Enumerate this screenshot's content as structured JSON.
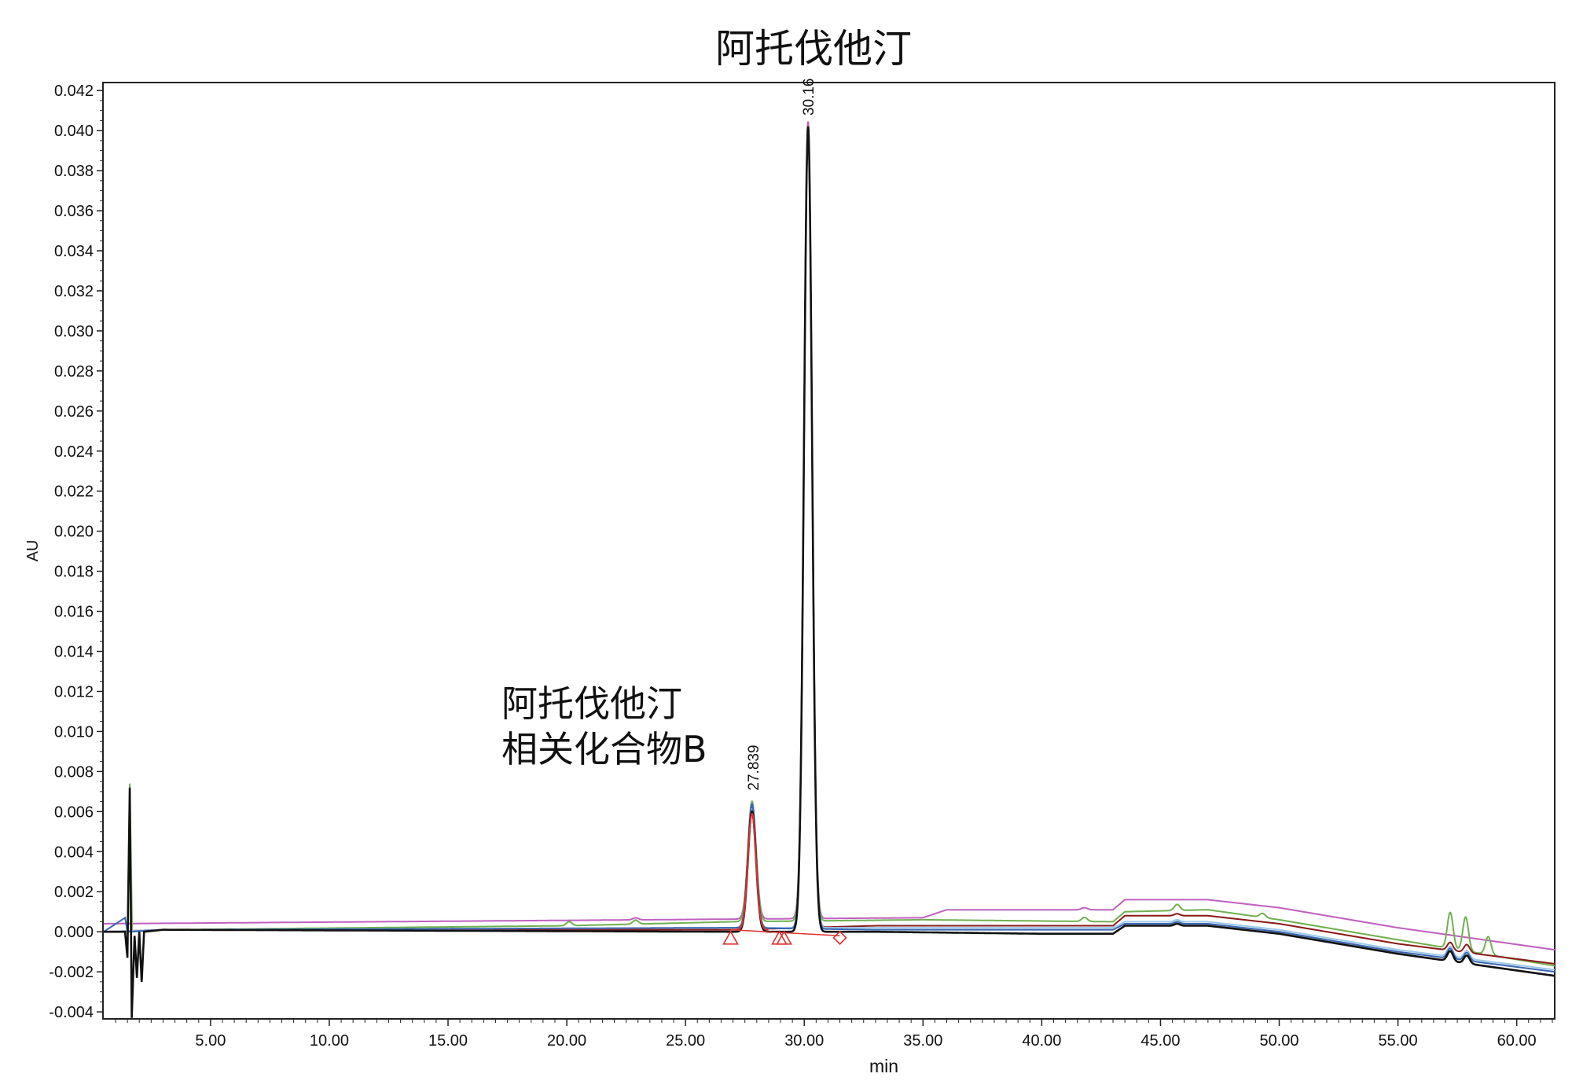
{
  "chart_data": {
    "type": "line",
    "title": "阿托伐他汀",
    "xlabel": "min",
    "ylabel": "AU",
    "xlim": [
      0.47,
      61.6
    ],
    "ylim": [
      -0.00435,
      0.0424
    ],
    "xticks": [
      5,
      10,
      15,
      20,
      25,
      30,
      35,
      40,
      45,
      50,
      55,
      60
    ],
    "xtick_labels": [
      "5.00",
      "10.00",
      "15.00",
      "20.00",
      "25.00",
      "30.00",
      "35.00",
      "40.00",
      "45.00",
      "50.00",
      "55.00",
      "60.00"
    ],
    "yticks": [
      -0.004,
      -0.002,
      0.0,
      0.002,
      0.004,
      0.006,
      0.008,
      0.01,
      0.012,
      0.014,
      0.016,
      0.018,
      0.02,
      0.022,
      0.024,
      0.026,
      0.028,
      0.03,
      0.032,
      0.034,
      0.036,
      0.038,
      0.04,
      0.042
    ],
    "ytick_labels": [
      "-0.004",
      "-0.002",
      "0.000",
      "0.002",
      "0.004",
      "0.006",
      "0.008",
      "0.010",
      "0.012",
      "0.014",
      "0.016",
      "0.018",
      "0.020",
      "0.022",
      "0.024",
      "0.026",
      "0.028",
      "0.030",
      "0.032",
      "0.034",
      "0.036",
      "0.038",
      "0.040",
      "0.042"
    ],
    "grid": false,
    "legend": "none",
    "peak_labels": [
      {
        "rt": 27.839,
        "label": "27.839",
        "height": 0.0065
      },
      {
        "rt": 30.16,
        "label": "30.16",
        "height": 0.0402
      }
    ],
    "annotation": [
      "阿托伐他汀",
      "相关化合物B"
    ],
    "series": [
      {
        "color": "#c060c0",
        "offset": 0.0004,
        "bumps": [
          [
            22.9,
            0.0001
          ],
          [
            41.8,
            0.0001
          ]
        ],
        "peaks": [
          [
            27.8,
            0.0058
          ],
          [
            30.16,
            0.0398
          ]
        ],
        "baseline": [
          [
            0.5,
            0
          ],
          [
            35,
            0.0003
          ],
          [
            36,
            0.0007
          ],
          [
            43,
            0.0007
          ],
          [
            43.5,
            0.0012
          ],
          [
            47,
            0.0012
          ],
          [
            50,
            0.0008
          ],
          [
            55,
            -0.0002
          ],
          [
            61.6,
            -0.0013
          ]
        ]
      },
      {
        "color": "#70b050",
        "offset": 0.0,
        "bumps": [
          [
            20.1,
            0.0002
          ],
          [
            22.9,
            0.0002
          ],
          [
            41.8,
            0.0002
          ],
          [
            45.7,
            0.0003
          ],
          [
            49.3,
            0.0002
          ],
          [
            57.2,
            0.0018
          ],
          [
            57.85,
            0.0017
          ],
          [
            58.8,
            0.0009
          ]
        ],
        "peaks": [
          [
            27.8,
            0.006
          ],
          [
            30.16,
            0.0395
          ]
        ],
        "baseline": [
          [
            0.5,
            0
          ],
          [
            1.5,
            0
          ],
          [
            1.6,
            0.0074
          ],
          [
            1.7,
            0
          ],
          [
            3,
            0.0001
          ],
          [
            20,
            0.0003
          ],
          [
            27,
            0.0005
          ],
          [
            35,
            0.0006
          ],
          [
            43,
            0.0005
          ],
          [
            43.5,
            0.001
          ],
          [
            47,
            0.0011
          ],
          [
            50,
            0.0006
          ],
          [
            55,
            -0.0004
          ],
          [
            61.6,
            -0.0017
          ]
        ]
      },
      {
        "color": "#8b1a1a",
        "offset": 0.0,
        "bumps": [
          [
            45.7,
            0.0001
          ],
          [
            57.2,
            0.0004
          ],
          [
            57.9,
            0.0004
          ]
        ],
        "peaks": [
          [
            27.8,
            0.0062
          ],
          [
            30.16,
            0.0398
          ]
        ],
        "baseline": [
          [
            0.5,
            0
          ],
          [
            3,
            0.0001
          ],
          [
            27,
            0.0001
          ],
          [
            33,
            0.0003
          ],
          [
            43,
            0.0003
          ],
          [
            43.5,
            0.0008
          ],
          [
            47,
            0.0008
          ],
          [
            50,
            0.0004
          ],
          [
            55,
            -0.0006
          ],
          [
            61.6,
            -0.0016
          ]
        ]
      },
      {
        "color": "#9cc8e8",
        "offset": 0.0,
        "bumps": [
          [
            45.7,
            0.0001
          ],
          [
            57.2,
            0.0005
          ],
          [
            57.9,
            0.0004
          ]
        ],
        "peaks": [
          [
            27.8,
            0.0062
          ],
          [
            30.16,
            0.0398
          ]
        ],
        "baseline": [
          [
            0.5,
            0
          ],
          [
            3,
            0.0001
          ],
          [
            27,
            0.0002
          ],
          [
            33,
            0.0002
          ],
          [
            43,
            0.0002
          ],
          [
            43.5,
            0.0005
          ],
          [
            47,
            0.0005
          ],
          [
            50,
            0.0001
          ],
          [
            55,
            -0.0009
          ],
          [
            61.6,
            -0.0019
          ]
        ]
      },
      {
        "color": "#3a66b0",
        "offset": 0.0,
        "bumps": [
          [
            45.7,
            0.0001
          ],
          [
            57.2,
            0.0005
          ],
          [
            57.9,
            0.0004
          ]
        ],
        "peaks": [
          [
            27.8,
            0.0062
          ],
          [
            30.16,
            0.04
          ]
        ],
        "baseline": [
          [
            0.5,
            0
          ],
          [
            1.4,
            0.0007
          ],
          [
            1.5,
            0
          ],
          [
            3,
            0.0001
          ],
          [
            27,
            0.0002
          ],
          [
            33,
            0.0001
          ],
          [
            43,
            0.0001
          ],
          [
            43.5,
            0.0004
          ],
          [
            47,
            0.0004
          ],
          [
            50,
            0
          ],
          [
            55,
            -0.001
          ],
          [
            61.6,
            -0.002
          ]
        ]
      },
      {
        "color": "#111111",
        "offset": 0.0,
        "bumps": [
          [
            45.7,
            0.0001
          ],
          [
            57.2,
            0.0005
          ],
          [
            57.9,
            0.0004
          ]
        ],
        "peaks": [
          [
            27.8,
            0.006
          ],
          [
            30.16,
            0.0402
          ]
        ],
        "baseline": [
          [
            0.5,
            0
          ],
          [
            1.4,
            0
          ],
          [
            1.5,
            -0.0013
          ],
          [
            1.6,
            0.0072
          ],
          [
            1.68,
            -0.0043
          ],
          [
            1.8,
            -0.0002
          ],
          [
            1.9,
            -0.0023
          ],
          [
            2.0,
            0
          ],
          [
            2.1,
            -0.0025
          ],
          [
            2.2,
            0
          ],
          [
            3,
            0.0001
          ],
          [
            27,
            0.0
          ],
          [
            33,
            0.0
          ],
          [
            40,
            -0.0001
          ],
          [
            43,
            -0.0001
          ],
          [
            43.5,
            0.0003
          ],
          [
            47,
            0.0003
          ],
          [
            50,
            -0.0001
          ],
          [
            55,
            -0.0011
          ],
          [
            61.6,
            -0.0022
          ]
        ]
      },
      {
        "color": "#e03030",
        "offset": 0.0,
        "bumps": [],
        "peaks": [
          [
            27.8,
            0.0058
          ]
        ],
        "baseline": [
          [
            26.9,
            0.0001
          ],
          [
            28.5,
            0.0001
          ]
        ]
      }
    ],
    "integration_markers": [
      {
        "shape": "triangle",
        "rt": 26.9
      },
      {
        "shape": "triangle",
        "rt": 28.95
      },
      {
        "shape": "triangle",
        "rt": 29.15
      },
      {
        "shape": "diamond",
        "rt": 31.5
      }
    ],
    "integration_baseline": [
      [
        26.9,
        0.0001
      ],
      [
        31.5,
        -0.0002
      ]
    ],
    "marker_color": "#e03030"
  }
}
